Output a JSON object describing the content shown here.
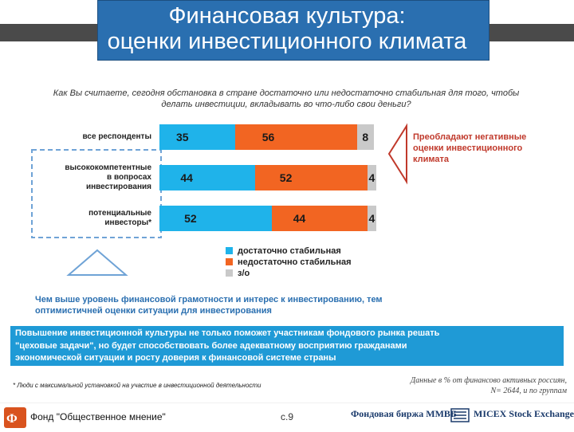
{
  "header": {
    "title_line1": "Финансовая культура:",
    "title_line2": "оценки инвестиционного климата"
  },
  "question": {
    "line1": "Как Вы считаете, сегодня обстановка в стране достаточно или недостаточно стабильная для того, чтобы",
    "line2": "делать инвестиции, вкладывать во что-либо свои деньги?"
  },
  "colors": {
    "title_box": "#2a6fb0",
    "stable": "#1fb3ea",
    "unstable": "#f26522",
    "no_answer": "#c9c9c9",
    "negative_note": "#c0392b",
    "accent_blue": "#2a6fb0",
    "promo_bg": "#1f9ad6",
    "dashed_frame": "#6fa3d6"
  },
  "chart_data": {
    "type": "bar",
    "orientation": "horizontal",
    "stacked": true,
    "unit": "%",
    "categories": [
      [
        "все респонденты"
      ],
      [
        "высококомпетентные",
        "в вопросах",
        "инвестирования"
      ],
      [
        "потенциальные",
        "инвесторы*"
      ]
    ],
    "series": [
      {
        "name": "достаточно стабильная",
        "values": [
          35,
          44,
          52
        ]
      },
      {
        "name": "недостаточно стабильная",
        "values": [
          56,
          52,
          44
        ]
      },
      {
        "name": "з/о",
        "values": [
          8,
          4,
          4
        ]
      }
    ],
    "xlim": [
      0,
      100
    ],
    "grid": false,
    "legend_position": "bottom"
  },
  "annotation_negative": [
    "Преобладают негативные",
    "оценки инвестиционного",
    "климата"
  ],
  "conclusion": [
    "Чем выше уровень финансовой грамотности и интерес к инвестированию, тем",
    "оптимистичней оценки ситуации для инвестирования"
  ],
  "promo": [
    "Повышение инвестиционной культуры не только поможет участникам фондового рынка решать",
    "\"цеховые задачи\", но будет способствовать более адекватному восприятию гражданами",
    "экономической ситуации и росту доверия к финансовой системе страны"
  ],
  "footnote": "* Люди с максимальной  установкой на участие в инвестиционной деятельности",
  "source": [
    "Данные в % от финансово активных россиян,",
    "N= 2644, и по группам"
  ],
  "footer": {
    "org_name": "Фонд \"Общественное мнение\"",
    "page": "с.9",
    "logo_mmvb": "Фондовая биржа ММВБ",
    "logo_micex": "MICEX Stock Exchange"
  }
}
